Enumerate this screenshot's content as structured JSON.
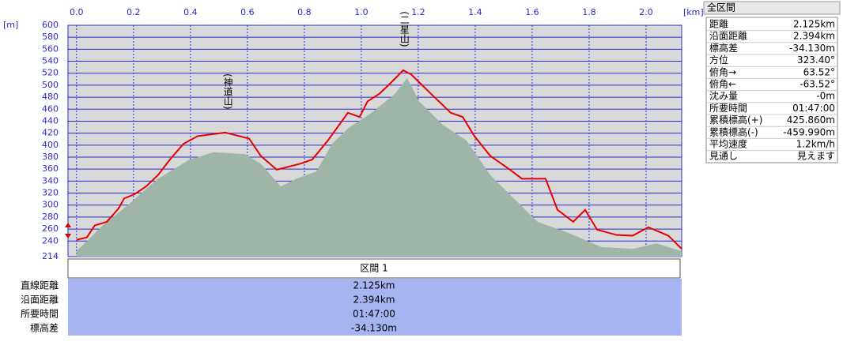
{
  "chart_data": {
    "type": "line",
    "x_unit": "[km]",
    "y_unit": "[m]",
    "xlim": [
      -0.03,
      2.125
    ],
    "xticks": [
      {
        "value": 0,
        "label": "0.0"
      },
      {
        "value": 0.2,
        "label": "0.2"
      },
      {
        "value": 0.4,
        "label": "0.4"
      },
      {
        "value": 0.6,
        "label": "0.6"
      },
      {
        "value": 0.8,
        "label": "0.8"
      },
      {
        "value": 1,
        "label": "1.0"
      },
      {
        "value": 1.2,
        "label": "1.2"
      },
      {
        "value": 1.4,
        "label": "1.4"
      },
      {
        "value": 1.6,
        "label": "1.6"
      },
      {
        "value": 1.8,
        "label": "1.8"
      },
      {
        "value": 2,
        "label": "2.0"
      }
    ],
    "ylim": [
      214,
      600
    ],
    "yticks": [
      214,
      240,
      260,
      280,
      300,
      320,
      340,
      360,
      380,
      400,
      420,
      440,
      460,
      480,
      500,
      520,
      540,
      560,
      580,
      600
    ],
    "grid": true,
    "series": [
      {
        "type": "area",
        "color": "#9fb5a8",
        "x": [
          0,
          0.092,
          0.175,
          0.286,
          0.397,
          0.481,
          0.592,
          0.647,
          0.717,
          0.772,
          0.842,
          0.897,
          0.953,
          1.036,
          1.119,
          1.161,
          1.203,
          1.286,
          1.369,
          1.453,
          1.536,
          1.619,
          1.731,
          1.842,
          1.953,
          2.036,
          2.125
        ],
        "values": [
          223,
          266,
          298,
          344,
          376,
          388,
          385,
          369,
          331,
          344,
          356,
          402,
          428,
          454,
          486,
          512,
          473,
          434,
          408,
          350,
          311,
          272,
          253,
          230,
          227,
          236,
          223
        ]
      },
      {
        "type": "line",
        "color": "#e80000",
        "x": [
          0,
          0.036,
          0.064,
          0.106,
          0.147,
          0.167,
          0.203,
          0.244,
          0.286,
          0.328,
          0.375,
          0.425,
          0.522,
          0.606,
          0.647,
          0.703,
          0.786,
          0.828,
          0.883,
          0.953,
          0.994,
          1.022,
          1.064,
          1.106,
          1.147,
          1.175,
          1.244,
          1.314,
          1.356,
          1.397,
          1.453,
          1.522,
          1.564,
          1.647,
          1.689,
          1.744,
          1.786,
          1.828,
          1.897,
          1.953,
          2.008,
          2.078,
          2.125
        ],
        "values": [
          242,
          246,
          266,
          272,
          294,
          311,
          318,
          331,
          350,
          376,
          402,
          415,
          421,
          411,
          382,
          359,
          369,
          376,
          408,
          454,
          447,
          473,
          486,
          505,
          525,
          518,
          486,
          454,
          447,
          415,
          382,
          359,
          344,
          344,
          292,
          272,
          292,
          259,
          250,
          249,
          263,
          249,
          227
        ]
      }
    ],
    "annotations": [
      {
        "label": "(神道山)",
        "x": 0.53,
        "y": 421
      },
      {
        "label": "(二星山)",
        "x": 1.15,
        "y": 525
      }
    ]
  },
  "info_panel": {
    "title": "全区間",
    "rows": [
      [
        "距離",
        "2.125km"
      ],
      [
        "沿面距離",
        "2.394km"
      ],
      [
        "標高差",
        "-34.130m"
      ],
      [
        "方位",
        "323.40°"
      ],
      [
        "俯角→",
        "63.52°"
      ],
      [
        "俯角←",
        "-63.52°"
      ],
      [
        "沈み量",
        "-0m"
      ],
      [
        "所要時間",
        "01:47:00"
      ],
      [
        "累積標高(+)",
        "425.860m"
      ],
      [
        "累積標高(-)",
        "-459.990m"
      ],
      [
        "平均速度",
        "1.2km/h"
      ],
      [
        "見通し",
        "見えます"
      ]
    ]
  },
  "section": {
    "title": "区間 1",
    "rows": [
      [
        "直線距離",
        "2.125km"
      ],
      [
        "沿面距離",
        "2.394km"
      ],
      [
        "所要時間",
        "01:47:00"
      ],
      [
        "標高差",
        "-34.130m"
      ]
    ]
  }
}
